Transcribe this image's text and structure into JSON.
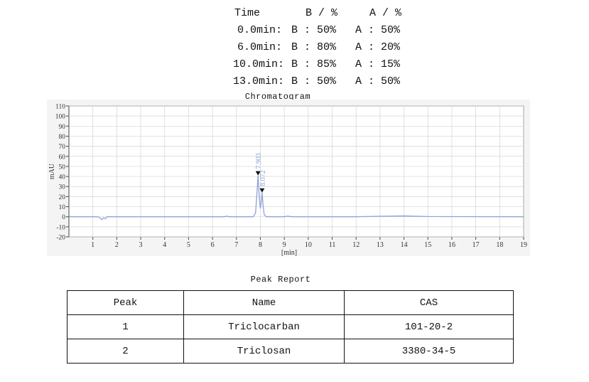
{
  "gradient": {
    "header": {
      "time": "Time",
      "b": "B / %",
      "a": "A / %"
    },
    "rows": [
      {
        "time": "0.0min:",
        "b": "B : 50%",
        "a": "A : 50%"
      },
      {
        "time": "6.0min:",
        "b": "B : 80%",
        "a": "A : 20%"
      },
      {
        "time": "10.0min:",
        "b": "B : 85%",
        "a": "A : 15%"
      },
      {
        "time": "13.0min:",
        "b": "B : 50%",
        "a": "A : 50%"
      }
    ]
  },
  "chart_data": {
    "type": "line",
    "title": "Chromatogram",
    "xlabel": "[min]",
    "ylabel": "mAU",
    "xlim": [
      0,
      19
    ],
    "ylim": [
      -20,
      110
    ],
    "xticks": [
      1,
      2,
      3,
      4,
      5,
      6,
      7,
      8,
      9,
      10,
      11,
      12,
      13,
      14,
      15,
      16,
      17,
      18,
      19
    ],
    "yticks": [
      -20,
      -10,
      0,
      10,
      20,
      30,
      40,
      50,
      60,
      70,
      80,
      90,
      100,
      110
    ],
    "grid": true,
    "line_color": "#8fa2d9",
    "series": [
      {
        "x": [
          0,
          1.2,
          1.3,
          1.38,
          1.45,
          1.52,
          1.6,
          3,
          6.5,
          6.6,
          6.7,
          7.7,
          7.8,
          7.86,
          7.903,
          7.95,
          8.0,
          8.04,
          8.072,
          8.11,
          8.16,
          8.25,
          9.0,
          9.15,
          9.3,
          12,
          13,
          14,
          15,
          19
        ],
        "y": [
          0,
          0,
          -1,
          -3,
          -1,
          -2,
          0,
          0,
          0,
          0.6,
          0,
          0,
          4,
          25,
          41,
          20,
          8,
          15,
          24,
          12,
          2,
          0,
          0,
          0.6,
          0,
          0,
          0.5,
          0.8,
          0.2,
          0
        ]
      }
    ],
    "peaks": [
      {
        "rt": 7.903,
        "label": "7.903",
        "y": 41
      },
      {
        "rt": 8.072,
        "label": "8.072",
        "y": 24
      }
    ]
  },
  "peak_report": {
    "title": "Peak Report",
    "headers": [
      "Peak",
      "Name",
      "CAS"
    ],
    "rows": [
      [
        "1",
        "Triclocarban",
        "101-20-2"
      ],
      [
        "2",
        "Triclosan",
        "3380-34-5"
      ]
    ]
  }
}
